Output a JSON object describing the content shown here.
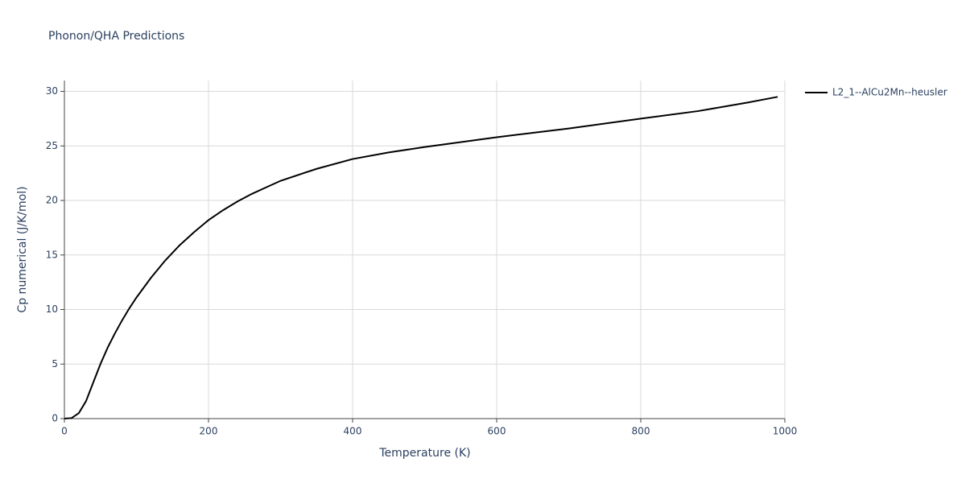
{
  "chart_data": {
    "type": "line",
    "title": "Phonon/QHA Predictions",
    "x_label": "Temperature (K)",
    "y_label": "Cp numerical (J/K/mol)",
    "x": [
      0,
      10,
      20,
      30,
      40,
      50,
      60,
      70,
      80,
      90,
      100,
      120,
      140,
      160,
      180,
      200,
      220,
      240,
      260,
      280,
      300,
      350,
      400,
      450,
      500,
      600,
      700,
      800,
      880,
      950,
      990
    ],
    "series": [
      {
        "name": "L2_1--AlCu2Mn--heusler",
        "color": "#000000",
        "values": [
          0,
          0.05,
          0.5,
          1.6,
          3.3,
          5.0,
          6.5,
          7.8,
          9.0,
          10.1,
          11.1,
          12.9,
          14.5,
          15.9,
          17.1,
          18.2,
          19.1,
          19.9,
          20.6,
          21.2,
          21.8,
          22.9,
          23.8,
          24.4,
          24.9,
          25.8,
          26.6,
          27.5,
          28.2,
          29.0,
          29.5
        ]
      }
    ],
    "xlim": [
      0,
      1000
    ],
    "ylim": [
      0,
      31
    ],
    "xticks": [
      0,
      200,
      400,
      600,
      800,
      1000
    ],
    "yticks": [
      0,
      5,
      10,
      15,
      20,
      25,
      30
    ],
    "grid": true,
    "legend_position": "right"
  }
}
